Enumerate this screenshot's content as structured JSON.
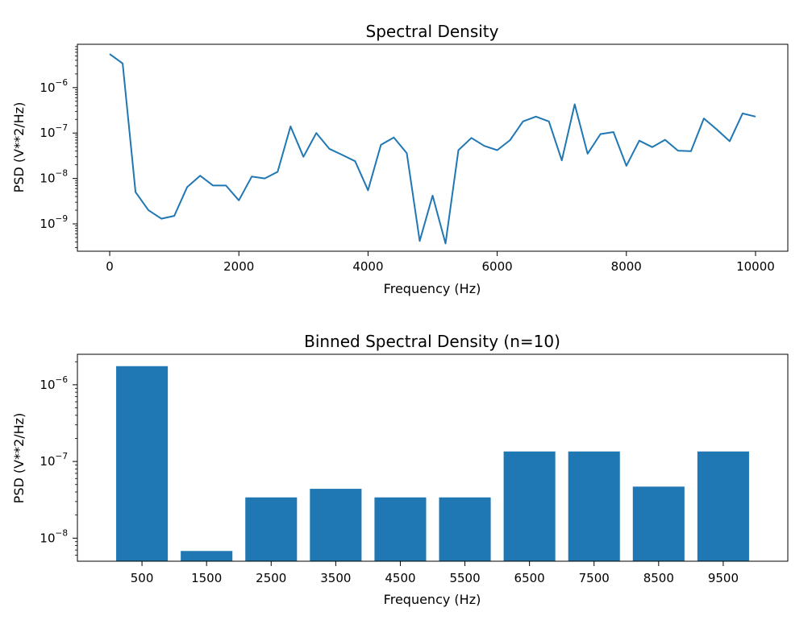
{
  "chart_data": [
    {
      "type": "line",
      "title": "Spectral Density",
      "xlabel": "Frequency (Hz)",
      "ylabel": "PSD (V**2/Hz)",
      "yscale": "log",
      "xlim": [
        -500,
        10500
      ],
      "ylim": [
        2.5e-10,
        9e-06
      ],
      "xticks": [
        0,
        2000,
        4000,
        6000,
        8000,
        10000
      ],
      "xtick_labels": [
        "0",
        "2000",
        "4000",
        "6000",
        "8000",
        "10000"
      ],
      "yticks": [
        1e-09,
        1e-08,
        1e-07,
        1e-06
      ],
      "ytick_labels": [
        {
          "base": "10",
          "exp": "−9"
        },
        {
          "base": "10",
          "exp": "−8"
        },
        {
          "base": "10",
          "exp": "−7"
        },
        {
          "base": "10",
          "exp": "−6"
        }
      ],
      "color": "#1f77b4",
      "x": [
        0,
        200,
        400,
        600,
        800,
        1000,
        1200,
        1400,
        1600,
        1800,
        2000,
        2200,
        2400,
        2600,
        2800,
        3000,
        3200,
        3400,
        3600,
        3800,
        4000,
        4200,
        4400,
        4600,
        4800,
        5000,
        5200,
        5400,
        5600,
        5800,
        6000,
        6200,
        6400,
        6600,
        6800,
        7000,
        7200,
        7400,
        7600,
        7800,
        8000,
        8200,
        8400,
        8600,
        8800,
        9000,
        9200,
        9400,
        9600,
        9800,
        10000
      ],
      "y": [
        5.5e-06,
        3.4e-06,
        5e-09,
        2e-09,
        1.3e-09,
        1.5e-09,
        6.5e-09,
        1.15e-08,
        7e-09,
        7e-09,
        3.3e-09,
        1.1e-08,
        1e-08,
        1.4e-08,
        1.4e-07,
        3e-08,
        1e-07,
        4.5e-08,
        3.3e-08,
        2.4e-08,
        5.5e-09,
        5.5e-08,
        8e-08,
        3.6e-08,
        4.2e-10,
        4.2e-09,
        3.7e-10,
        4.2e-08,
        7.8e-08,
        5.2e-08,
        4.2e-08,
        7e-08,
        1.8e-07,
        2.3e-07,
        1.8e-07,
        2.5e-08,
        4.3e-07,
        3.5e-08,
        9.5e-08,
        1.05e-07,
        1.9e-08,
        6.8e-08,
        4.9e-08,
        7.1e-08,
        4.1e-08,
        4e-08,
        2.1e-07,
        1.2e-07,
        6.6e-08,
        2.7e-07,
        2.3e-07
      ]
    },
    {
      "type": "bar",
      "title": "Binned Spectral Density (n=10)",
      "xlabel": "Frequency (Hz)",
      "ylabel": "PSD (V**2/Hz)",
      "yscale": "log",
      "xlim": [
        -500,
        10500
      ],
      "ylim": [
        5e-09,
        2.5e-06
      ],
      "bar_width": 800,
      "categories": [
        "500",
        "1500",
        "2500",
        "3500",
        "4500",
        "5500",
        "6500",
        "7500",
        "8500",
        "9500"
      ],
      "x": [
        500,
        1500,
        2500,
        3500,
        4500,
        5500,
        6500,
        7500,
        8500,
        9500
      ],
      "values": [
        1.75e-06,
        6.8e-09,
        3.4e-08,
        4.4e-08,
        3.4e-08,
        3.4e-08,
        1.35e-07,
        1.35e-07,
        4.7e-08,
        1.35e-07
      ],
      "yticks": [
        1e-08,
        1e-07,
        1e-06
      ],
      "ytick_labels": [
        {
          "base": "10",
          "exp": "−8"
        },
        {
          "base": "10",
          "exp": "−7"
        },
        {
          "base": "10",
          "exp": "−6"
        }
      ],
      "color": "#1f77b4"
    }
  ]
}
